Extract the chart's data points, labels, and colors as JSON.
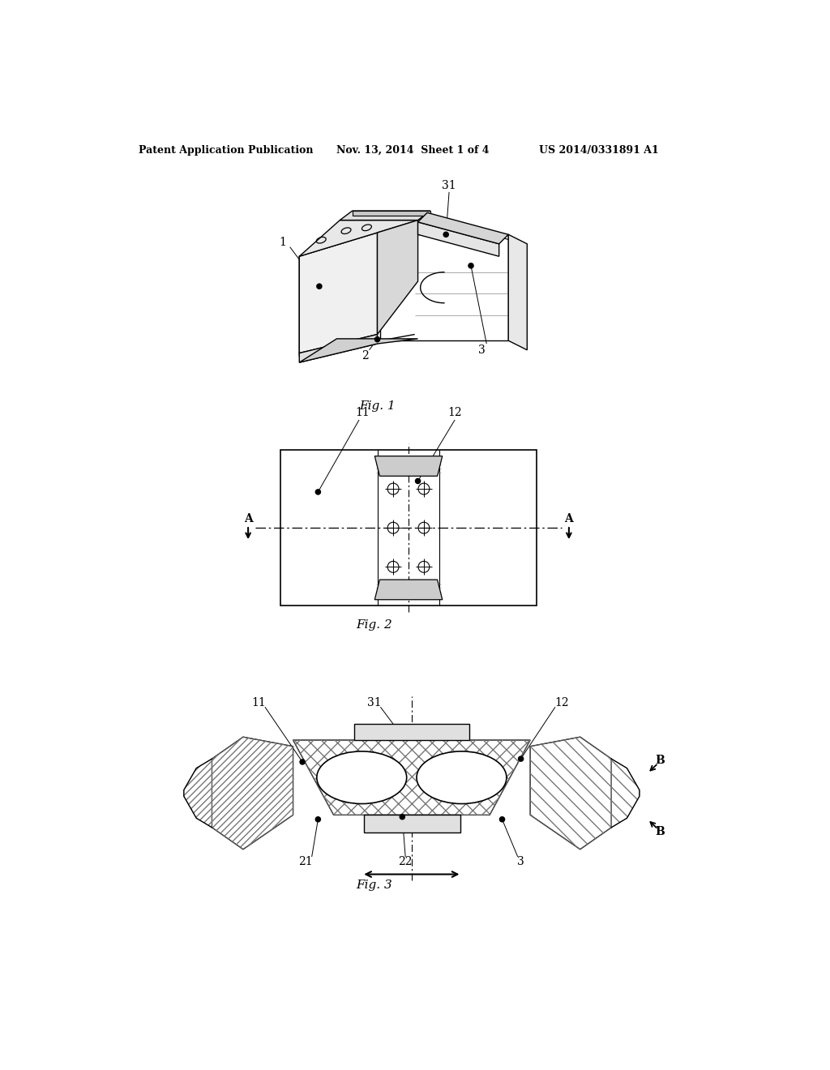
{
  "header_left": "Patent Application Publication",
  "header_mid": "Nov. 13, 2014  Sheet 1 of 4",
  "header_right": "US 2014/0331891 A1",
  "fig1_caption": "Fig. 1",
  "fig2_caption": "Fig. 2",
  "fig3_caption": "Fig. 3",
  "background_color": "#ffffff"
}
